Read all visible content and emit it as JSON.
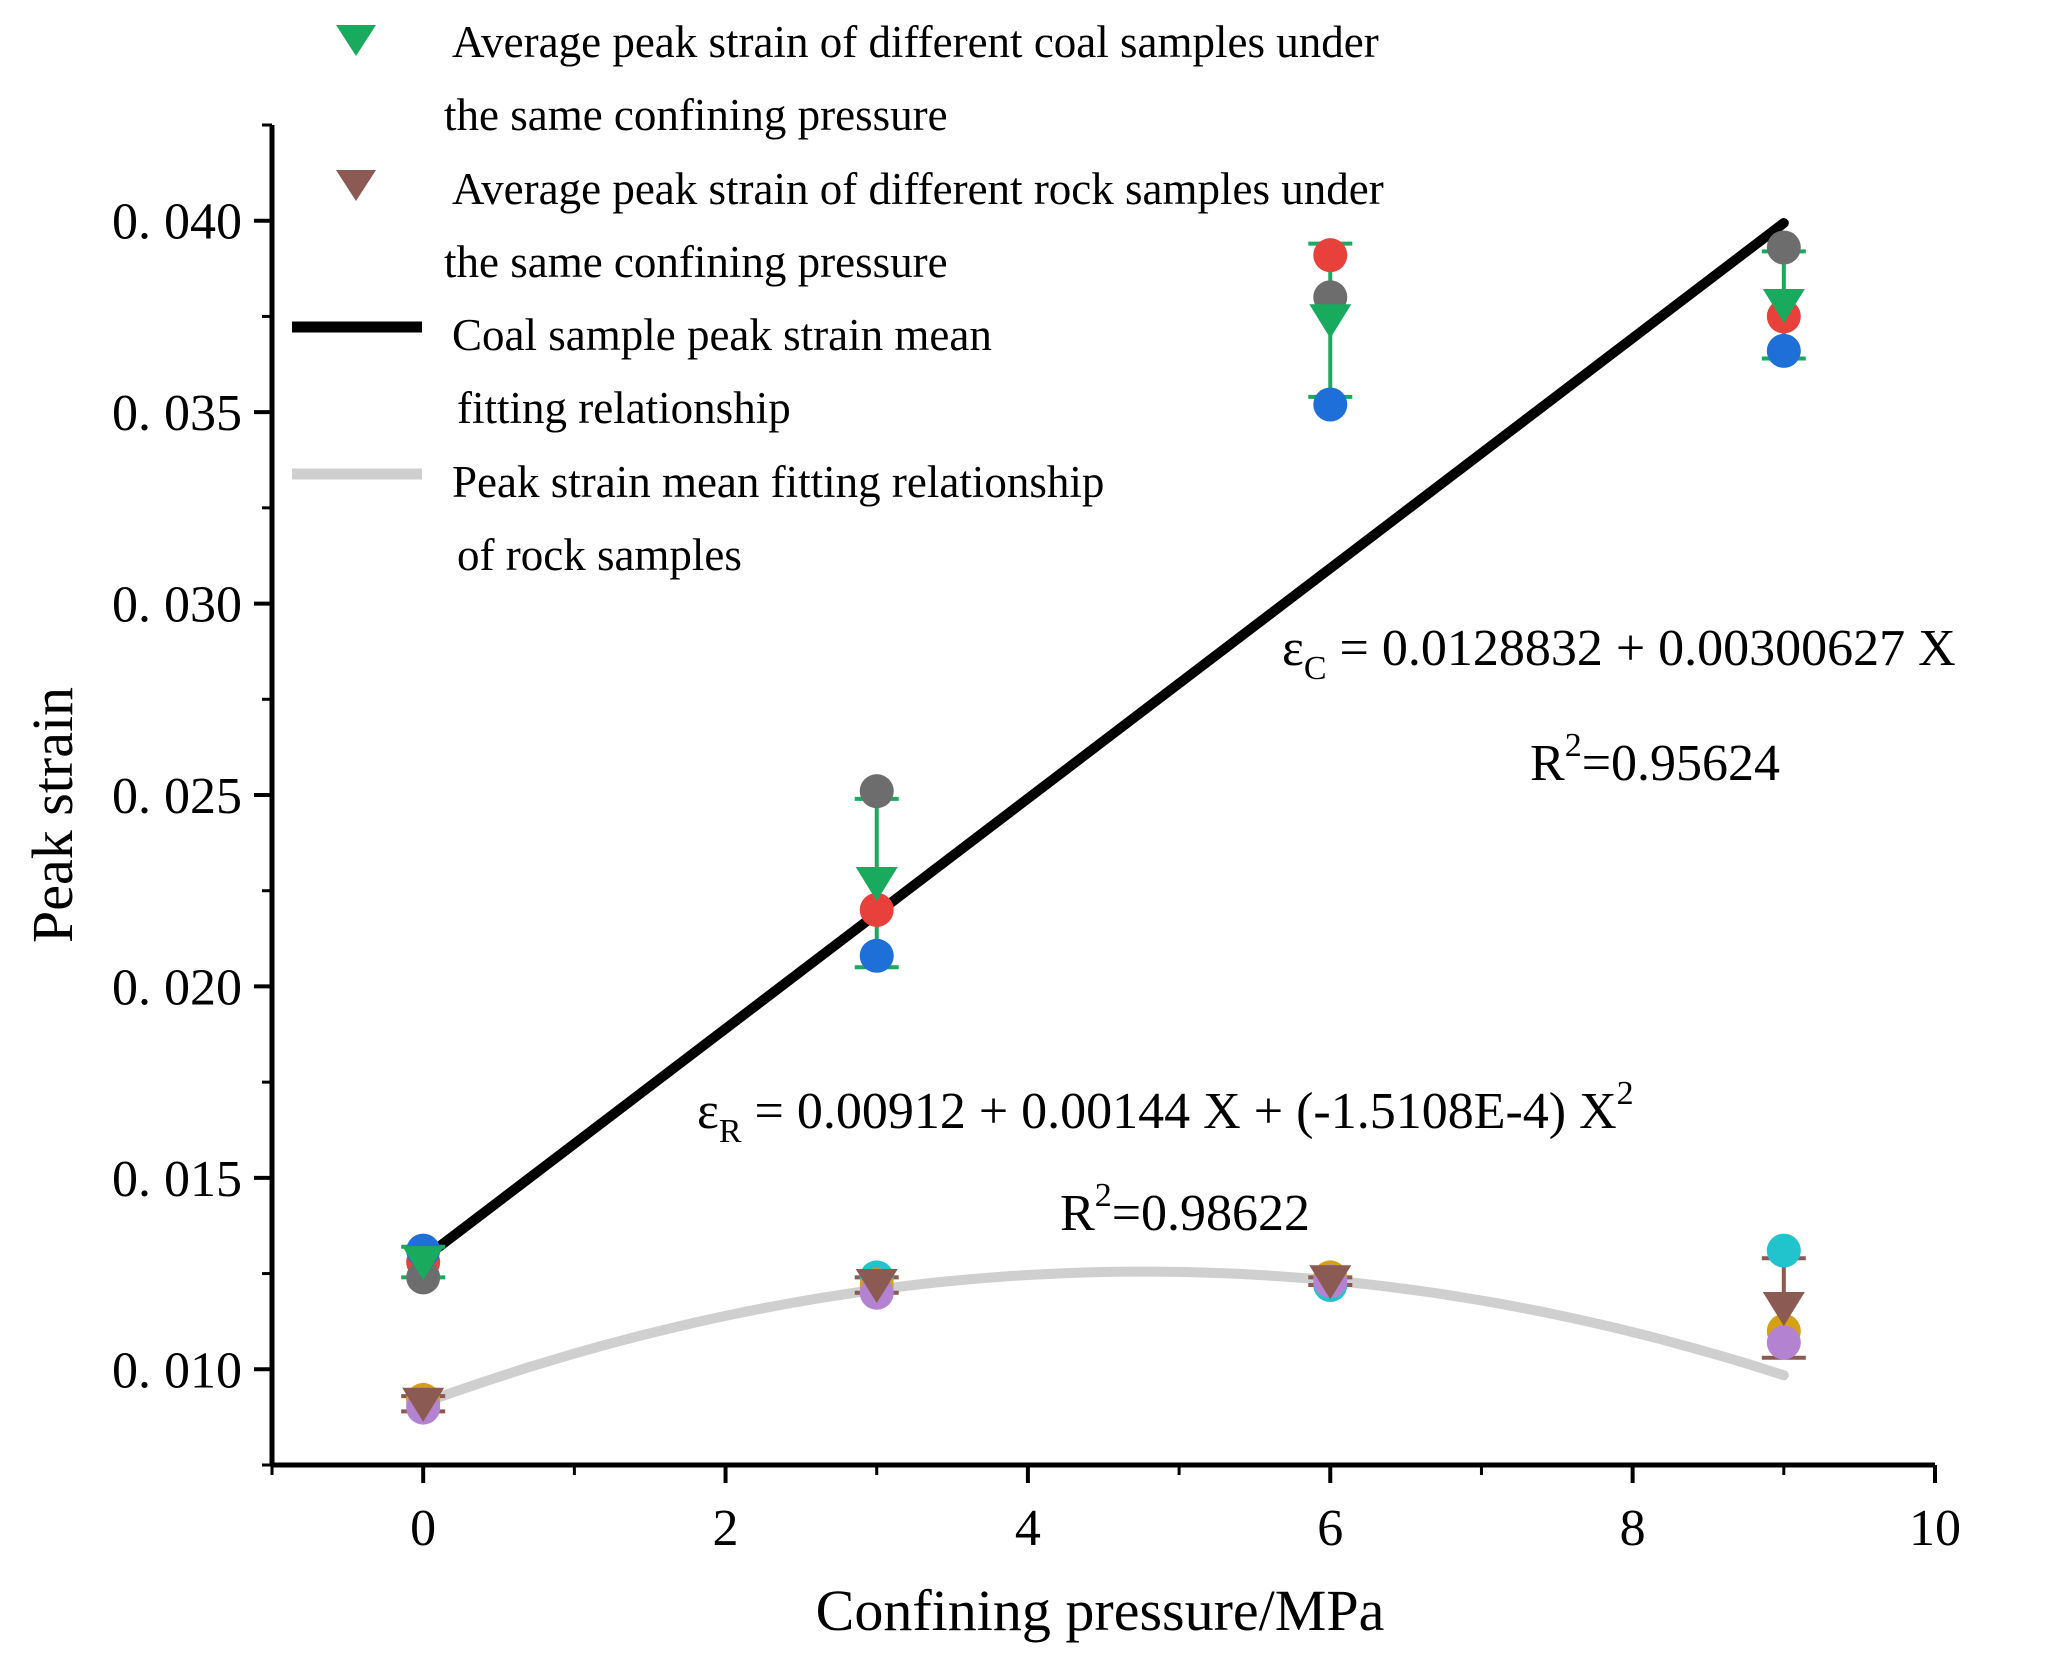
{
  "chart_data": {
    "type": "scatter",
    "xlabel": "Confining pressure/MPa",
    "ylabel": "Peak strain",
    "xlim": [
      -1,
      10
    ],
    "ylim": [
      0.0075,
      0.0425
    ],
    "x_ticks": [
      0,
      2,
      4,
      6,
      8,
      10
    ],
    "x_tick_labels": [
      "0",
      "2",
      "4",
      "6",
      "8",
      "10"
    ],
    "y_ticks": [
      0.01,
      0.015,
      0.02,
      0.025,
      0.03,
      0.035,
      0.04
    ],
    "y_tick_labels": [
      "0. 010",
      "0. 015",
      "0. 020",
      "0. 025",
      "0. 030",
      "0. 035",
      "0. 040"
    ],
    "grid": false,
    "legend_position": "top-left",
    "legend": [
      {
        "line1": "Average peak strain of different coal samples under",
        "line2": "the same confining pressure",
        "symbol": "triangle-down",
        "color": "#1aaa5e"
      },
      {
        "line1": "Average peak strain of different rock samples under",
        "line2": "the same confining pressure",
        "symbol": "triangle-down",
        "color": "#8b5a52"
      },
      {
        "line1": "Coal sample peak strain mean",
        "line2": "fitting relationship",
        "symbol": "line",
        "color": "#000000"
      },
      {
        "line1": "Peak strain mean fitting relationship",
        "line2": "of rock samples",
        "symbol": "line",
        "color": "#cfcfcf"
      }
    ],
    "coal_samples": [
      {
        "name": "coal-red",
        "color": "#e8413c",
        "x": [
          0,
          3,
          6,
          9
        ],
        "y": [
          0.0128,
          0.022,
          0.0391,
          0.0375
        ]
      },
      {
        "name": "coal-gray",
        "color": "#6d6d6d",
        "x": [
          0,
          3,
          6,
          9
        ],
        "y": [
          0.0124,
          0.0251,
          0.038,
          0.0393
        ]
      },
      {
        "name": "coal-blue",
        "color": "#1f6fd8",
        "x": [
          0,
          3,
          6,
          9
        ],
        "y": [
          0.0131,
          0.0208,
          0.0352,
          0.0366
        ]
      }
    ],
    "rock_samples": [
      {
        "name": "rock-cyan",
        "color": "#21c4cc",
        "x": [
          0,
          3,
          6,
          9
        ],
        "y": [
          0.0091,
          0.0124,
          0.0122,
          0.0131
        ]
      },
      {
        "name": "rock-orange",
        "color": "#d4a016",
        "x": [
          0,
          3,
          6,
          9
        ],
        "y": [
          0.0092,
          0.0122,
          0.0124,
          0.011
        ]
      },
      {
        "name": "rock-purple",
        "color": "#b383d1",
        "x": [
          0,
          3,
          6,
          9
        ],
        "y": [
          0.009,
          0.012,
          0.0123,
          0.0107
        ]
      }
    ],
    "coal_mean": {
      "name": "Average peak strain of different coal samples",
      "color": "#1aaa5e",
      "x": [
        0,
        3,
        6,
        9
      ],
      "y": [
        0.0128,
        0.0227,
        0.0374,
        0.0378
      ],
      "err": [
        0.0004,
        0.0022,
        0.002,
        0.0014
      ]
    },
    "rock_mean": {
      "name": "Average peak strain of different rock samples",
      "color": "#8b5a52",
      "x": [
        0,
        3,
        6,
        9
      ],
      "y": [
        0.0091,
        0.0122,
        0.0123,
        0.0116
      ],
      "err": [
        0.0002,
        0.0002,
        0.0001,
        0.0013
      ]
    },
    "coal_fit": {
      "type": "linear",
      "intercept": 0.0128832,
      "slope": 0.00300627,
      "x_range": [
        0,
        9
      ],
      "color": "#000000"
    },
    "rock_fit": {
      "type": "quadratic",
      "a0": 0.00912,
      "a1": 0.00144,
      "a2": -0.00015108,
      "x_range": [
        0,
        9
      ],
      "color": "#cfcfcf"
    },
    "annotations": {
      "coal_eq_symbol": "ε",
      "coal_eq_sub": "C",
      "coal_eq_rest": " = 0.0128832 + 0.00300627 X",
      "coal_r2_prefix": "R",
      "coal_r2_sup": "2",
      "coal_r2_value": "=0.95624",
      "rock_eq_symbol": "ε",
      "rock_eq_sub": "R",
      "rock_eq_rest": " =  0.00912 + 0.00144 X  + (-1.5108E-4) X",
      "rock_eq_sup": "2",
      "rock_r2_prefix": "R",
      "rock_r2_sup": "2",
      "rock_r2_value": "=0.98622"
    }
  }
}
